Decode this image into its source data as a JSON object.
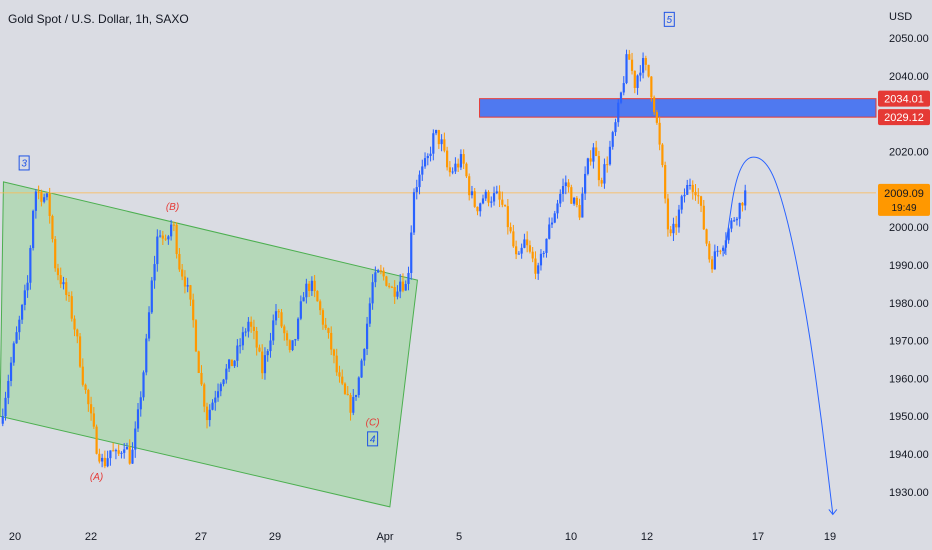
{
  "header": {
    "title": "Gold Spot / U.S. Dollar, 1h, SAXO"
  },
  "price_axis": {
    "currency": "USD"
  },
  "colors": {
    "background": "#dadce3",
    "up": "#2962ff",
    "down": "#ff9800",
    "channel_fill": "#a5d6a7",
    "channel_stroke": "#4caf50",
    "zone_fill": "#4f79f0",
    "zone_stroke": "#e53935",
    "wave_red": "#e53935",
    "wave_blue": "#1e53e5",
    "current_line": "#ffb74d"
  },
  "chart_data": {
    "type": "candlestick",
    "title": "Gold Spot / U.S. Dollar, 1h, SAXO",
    "xlabel": "",
    "ylabel": "USD",
    "ylim": [
      1922,
      2058
    ],
    "yticks": [
      1930,
      1940,
      1950,
      1960,
      1970,
      1980,
      1990,
      2000,
      2010,
      2020,
      2030,
      2040,
      2050
    ],
    "ytick_labels": [
      "1930.00",
      "1940.00",
      "1950.00",
      "1960.00",
      "1970.00",
      "1980.00",
      "1990.00",
      "2000.00",
      "2010.00",
      "2020.00",
      "2030.00",
      "2040.00",
      "2050.00"
    ],
    "xticks": [
      "20",
      "22",
      "27",
      "29",
      "Apr",
      "5",
      "10",
      "12",
      "17",
      "19"
    ],
    "price_path": [
      [
        0,
        1948
      ],
      [
        2,
        1968
      ],
      [
        4,
        1985
      ],
      [
        5,
        2010
      ],
      [
        7,
        2007
      ],
      [
        8,
        1990
      ],
      [
        10,
        1980
      ],
      [
        11,
        1972
      ],
      [
        12,
        1960
      ],
      [
        14,
        1942
      ],
      [
        15,
        1937
      ],
      [
        16,
        1941
      ],
      [
        17,
        1939
      ],
      [
        18,
        1943
      ],
      [
        19,
        1938
      ],
      [
        20,
        1950
      ],
      [
        21,
        1965
      ],
      [
        22,
        1985
      ],
      [
        23,
        2000
      ],
      [
        24,
        1995
      ],
      [
        25,
        2002
      ],
      [
        26,
        1990
      ],
      [
        27,
        1985
      ],
      [
        28,
        1975
      ],
      [
        29,
        1960
      ],
      [
        30,
        1950
      ],
      [
        31,
        1955
      ],
      [
        32,
        1960
      ],
      [
        34,
        1965
      ],
      [
        36,
        1975
      ],
      [
        37,
        1970
      ],
      [
        38,
        1962
      ],
      [
        39,
        1970
      ],
      [
        40,
        1978
      ],
      [
        41,
        1973
      ],
      [
        42,
        1966
      ],
      [
        43,
        1972
      ],
      [
        44,
        1983
      ],
      [
        45,
        1985
      ],
      [
        46,
        1980
      ],
      [
        47,
        1974
      ],
      [
        48,
        1968
      ],
      [
        49,
        1960
      ],
      [
        50,
        1955
      ],
      [
        51,
        1952
      ],
      [
        52,
        1960
      ],
      [
        53,
        1972
      ],
      [
        54,
        1985
      ],
      [
        55,
        1988
      ],
      [
        56,
        1986
      ],
      [
        57,
        1983
      ],
      [
        58,
        1986
      ],
      [
        59,
        1984
      ],
      [
        60,
        2010
      ],
      [
        62,
        2018
      ],
      [
        63,
        2025
      ],
      [
        64,
        2022
      ],
      [
        65,
        2014
      ],
      [
        66,
        2016
      ],
      [
        67,
        2018
      ],
      [
        68,
        2010
      ],
      [
        69,
        2005
      ],
      [
        70,
        2008
      ],
      [
        72,
        2008
      ],
      [
        73,
        2005
      ],
      [
        74,
        1998
      ],
      [
        75,
        1990
      ],
      [
        76,
        1996
      ],
      [
        77,
        1992
      ],
      [
        78,
        1988
      ],
      [
        79,
        1996
      ],
      [
        80,
        2002
      ],
      [
        81,
        2008
      ],
      [
        82,
        2012
      ],
      [
        83,
        2007
      ],
      [
        84,
        2004
      ],
      [
        85,
        2015
      ],
      [
        86,
        2022
      ],
      [
        87,
        2012
      ],
      [
        88,
        2018
      ],
      [
        89,
        2025
      ],
      [
        90,
        2035
      ],
      [
        91,
        2046
      ],
      [
        92,
        2038
      ],
      [
        93,
        2044
      ],
      [
        94,
        2040
      ],
      [
        95,
        2030
      ],
      [
        96,
        2015
      ],
      [
        97,
        1996
      ],
      [
        98,
        2001
      ],
      [
        99,
        2008
      ],
      [
        100,
        2012
      ],
      [
        101,
        2010
      ],
      [
        102,
        2000
      ],
      [
        103,
        1990
      ],
      [
        104,
        1994
      ],
      [
        105,
        1997
      ],
      [
        106,
        2001
      ],
      [
        107,
        2005
      ],
      [
        108,
        2009
      ]
    ],
    "current_price": "2009.09",
    "countdown": "19:49",
    "resistance_zone": {
      "upper": 2034.01,
      "lower": 2029.12,
      "upper_label": "2034.01",
      "lower_label": "2029.12"
    },
    "channel": {
      "upper_from": [
        0.5,
        2012
      ],
      "upper_to": [
        60.5,
        1986
      ],
      "lower_from": [
        0,
        1950
      ],
      "lower_to": [
        56.5,
        1926
      ]
    },
    "wave_labels": [
      {
        "text": "3",
        "boxed": true,
        "x": 3.5,
        "y": 2017,
        "color": "blue"
      },
      {
        "text": "(B)",
        "boxed": false,
        "x": 25,
        "y": 2005.5,
        "color": "red"
      },
      {
        "text": "(A)",
        "boxed": false,
        "x": 14,
        "y": 1934,
        "color": "red"
      },
      {
        "text": "(C)",
        "boxed": false,
        "x": 54,
        "y": 1948.5,
        "color": "red"
      },
      {
        "text": "4",
        "boxed": true,
        "x": 54,
        "y": 1944,
        "color": "blue"
      },
      {
        "text": "5",
        "boxed": true,
        "x": 97,
        "y": 2055,
        "color": "blue"
      }
    ],
    "projection": [
      [
        105,
        1993
      ],
      [
        107,
        2018
      ],
      [
        111,
        2019
      ],
      [
        114,
        2004
      ],
      [
        117,
        1976
      ],
      [
        119,
        1950
      ],
      [
        120.7,
        1924
      ]
    ]
  }
}
